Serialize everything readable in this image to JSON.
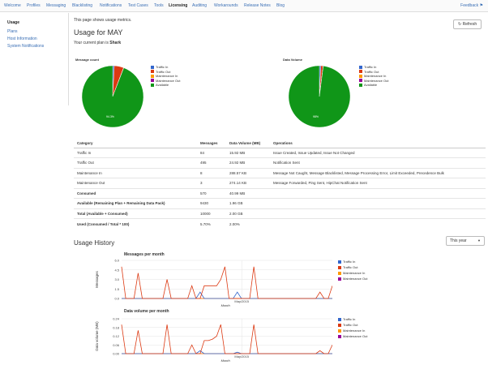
{
  "nav": {
    "tabs": [
      "Welcome",
      "Profiles",
      "Messaging",
      "Blacklisting",
      "Notifications",
      "Test Cases",
      "Tools",
      "Licensing",
      "Auditing",
      "Workarounds",
      "Release Notes",
      "Blog"
    ],
    "active": "Licensing",
    "feedback": "Feedback"
  },
  "sidebar": {
    "items": [
      "Usage",
      "Plans",
      "Host Information",
      "System Notifications"
    ],
    "active": "Usage"
  },
  "page": {
    "intro": "This page shows usage metrics.",
    "title": "Usage for MAY",
    "plan_prefix": "Your current plan is",
    "plan_name": "Shark",
    "refresh": "Refresh"
  },
  "pie_legend": [
    "Traffic In",
    "Traffic Out",
    "Maintenance In",
    "Maintenance Out",
    "Available"
  ],
  "colors": {
    "traffic_in": "#3366cc",
    "traffic_out": "#dc3912",
    "maint_in": "#ff9900",
    "maint_out": "#990099",
    "available": "#109618"
  },
  "table": {
    "headers": [
      "Category",
      "Messages",
      "Data Volume (MB)",
      "Operations"
    ],
    "rows": [
      [
        "Traffic In",
        "84",
        "15.92 MB",
        "Issue Created, Issue Updated, Issue Not Changed"
      ],
      [
        "Traffic Out",
        "495",
        "24.92 MB",
        "Notification Sent"
      ],
      [
        "Maintenance In",
        "8",
        "288.57 KB",
        "Message Not Caught, Message Blacklisted, Message Processing Error, Limit Exceeded, Precedence Bulk"
      ],
      [
        "Maintenance Out",
        "3",
        "274.14 KB",
        "Message Forwarded, Ping Sent, HipChat Notification Sent"
      ],
      [
        "Consumed",
        "570",
        "40.99 MB",
        ""
      ],
      [
        "Available (Remaining Plan + Remaining Data Pack)",
        "9430",
        "1.96 GB",
        ""
      ],
      [
        "Total (Available + Consumed)",
        "10000",
        "2.00 GB",
        ""
      ],
      [
        "Used (Consumed / Total * 100)",
        "5.70%",
        "2.00%",
        ""
      ]
    ]
  },
  "history": {
    "title": "Usage History",
    "range": "This year",
    "line_legend": [
      "Traffic In",
      "Traffic Out",
      "Maintenance In",
      "Maintenance Out"
    ]
  },
  "chart_data": [
    {
      "type": "pie",
      "title": "Message count",
      "labels": [
        "Traffic In",
        "Traffic Out",
        "Maintenance In",
        "Maintenance Out",
        "Available"
      ],
      "values": [
        84,
        495,
        8,
        3,
        9430
      ],
      "slice_label": "94.3%"
    },
    {
      "type": "pie",
      "title": "Data Volume",
      "labels": [
        "Traffic In",
        "Traffic Out",
        "Maintenance In",
        "Maintenance Out",
        "Available"
      ],
      "values": [
        15.92,
        24.92,
        0.28,
        0.27,
        2007
      ],
      "slice_label": "98%"
    },
    {
      "type": "line",
      "title": "Messages per month",
      "xlabel": "Month",
      "ylabel": "Messages",
      "x_tick": "May/2015",
      "yticks": [
        "0.0",
        "1.5",
        "3.0",
        "4.5",
        "6.0"
      ],
      "ylim": [
        0,
        6
      ],
      "series": [
        {
          "name": "Traffic In",
          "values": [
            0,
            0,
            0,
            0,
            0,
            0,
            0,
            0,
            0,
            0,
            0,
            0,
            0,
            0,
            0,
            0,
            0,
            0,
            0,
            1,
            0,
            0,
            0,
            0,
            0,
            0,
            0,
            0,
            1,
            0,
            0,
            0,
            0,
            0,
            0,
            0,
            0,
            0,
            0,
            0,
            0,
            0,
            0,
            0,
            0,
            0,
            0,
            0,
            0,
            0,
            0,
            0
          ]
        },
        {
          "name": "Traffic Out",
          "values": [
            5,
            0,
            0,
            0,
            4,
            0,
            0,
            0,
            0,
            0,
            0,
            3,
            0,
            0,
            0,
            0,
            0,
            2,
            0,
            0,
            2,
            2,
            2,
            2,
            3,
            5,
            0,
            0,
            0,
            0,
            0,
            0,
            5,
            0,
            0,
            0,
            0,
            0,
            0,
            0,
            0,
            0,
            0,
            0,
            0,
            0,
            0,
            0,
            1,
            0,
            0,
            2
          ]
        },
        {
          "name": "Maintenance In",
          "values": [
            0,
            0,
            0,
            0,
            0,
            0,
            0,
            0,
            0,
            0,
            0,
            0,
            0,
            0,
            0,
            0,
            0,
            0,
            0,
            0,
            0,
            0,
            0,
            0,
            0,
            0,
            0,
            0,
            0,
            0,
            0,
            0,
            0,
            0,
            0,
            0,
            0,
            0,
            0,
            0,
            0,
            0,
            0,
            0,
            0,
            0,
            0,
            0,
            0,
            0,
            0,
            0
          ]
        },
        {
          "name": "Maintenance Out",
          "values": [
            0,
            0,
            0,
            0,
            0,
            0,
            0,
            0,
            0,
            0,
            0,
            0,
            0,
            0,
            0,
            0,
            0,
            0,
            0,
            0,
            0,
            0,
            0,
            0,
            0,
            0,
            0,
            0,
            0,
            0,
            0,
            0,
            0,
            0,
            0,
            0,
            0,
            0,
            0,
            0,
            0,
            0,
            0,
            0,
            0,
            0,
            0,
            0,
            0,
            0,
            0,
            0
          ]
        }
      ]
    },
    {
      "type": "line",
      "title": "Data volume per month",
      "xlabel": "Month",
      "ylabel": "Data volume (MB)",
      "x_tick": "May/2015",
      "yticks": [
        "0.00",
        "0.06",
        "0.12",
        "0.18",
        "0.24"
      ],
      "ylim": [
        0,
        0.24
      ],
      "series": [
        {
          "name": "Traffic In",
          "values": [
            0,
            0,
            0,
            0,
            0,
            0,
            0,
            0,
            0,
            0,
            0,
            0,
            0,
            0,
            0,
            0,
            0,
            0,
            0,
            0.02,
            0,
            0,
            0,
            0,
            0,
            0,
            0,
            0,
            0.01,
            0,
            0,
            0,
            0,
            0,
            0,
            0,
            0,
            0,
            0,
            0,
            0,
            0,
            0,
            0,
            0,
            0,
            0,
            0,
            0,
            0,
            0,
            0
          ]
        },
        {
          "name": "Traffic Out",
          "values": [
            0.2,
            0,
            0,
            0,
            0.16,
            0,
            0,
            0,
            0,
            0,
            0,
            0.2,
            0,
            0,
            0,
            0,
            0,
            0.06,
            0,
            0,
            0.09,
            0.09,
            0.1,
            0.12,
            0.2,
            0,
            0,
            0,
            0,
            0,
            0,
            0,
            0.2,
            0,
            0,
            0,
            0,
            0,
            0,
            0,
            0,
            0,
            0,
            0,
            0,
            0,
            0,
            0,
            0.02,
            0,
            0,
            0.06
          ]
        },
        {
          "name": "Maintenance In",
          "values": [
            0,
            0,
            0,
            0,
            0,
            0,
            0,
            0,
            0,
            0,
            0,
            0,
            0,
            0,
            0,
            0,
            0,
            0,
            0,
            0,
            0,
            0,
            0,
            0,
            0,
            0,
            0,
            0,
            0,
            0,
            0,
            0,
            0,
            0,
            0,
            0,
            0,
            0,
            0,
            0,
            0,
            0,
            0,
            0,
            0,
            0,
            0,
            0,
            0,
            0,
            0,
            0
          ]
        },
        {
          "name": "Maintenance Out",
          "values": [
            0,
            0,
            0,
            0,
            0,
            0,
            0,
            0,
            0,
            0,
            0,
            0,
            0,
            0,
            0,
            0,
            0,
            0,
            0,
            0,
            0,
            0,
            0,
            0,
            0,
            0,
            0,
            0,
            0,
            0,
            0,
            0,
            0,
            0,
            0,
            0,
            0,
            0,
            0,
            0,
            0,
            0,
            0,
            0,
            0,
            0,
            0,
            0,
            0,
            0,
            0,
            0
          ]
        }
      ]
    }
  ]
}
